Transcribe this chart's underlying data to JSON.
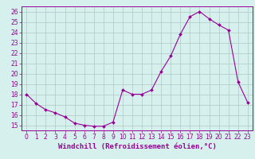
{
  "hours": [
    0,
    1,
    2,
    3,
    4,
    5,
    6,
    7,
    8,
    9,
    10,
    11,
    12,
    13,
    14,
    15,
    16,
    17,
    18,
    19,
    20,
    21,
    22,
    23
  ],
  "values": [
    18.0,
    17.1,
    16.5,
    16.2,
    15.8,
    15.2,
    15.0,
    14.9,
    14.9,
    15.3,
    18.4,
    18.0,
    18.0,
    18.4,
    20.2,
    21.7,
    23.8,
    25.5,
    26.0,
    25.3,
    24.7,
    24.2,
    19.2,
    17.2
  ],
  "line_color": "#990099",
  "marker": "D",
  "marker_size": 2,
  "bg_color": "#d6f0ee",
  "grid_color": "#b0c8c4",
  "xlabel": "Windchill (Refroidissement éolien,°C)",
  "xlim": [
    -0.5,
    23.5
  ],
  "ylim": [
    14.5,
    26.5
  ],
  "yticks": [
    15,
    16,
    17,
    18,
    19,
    20,
    21,
    22,
    23,
    24,
    25,
    26
  ],
  "xticks": [
    0,
    1,
    2,
    3,
    4,
    5,
    6,
    7,
    8,
    9,
    10,
    11,
    12,
    13,
    14,
    15,
    16,
    17,
    18,
    19,
    20,
    21,
    22,
    23
  ],
  "tick_fontsize": 5.5,
  "xlabel_fontsize": 6.5,
  "tick_color": "#990099",
  "axes_color": "#990099"
}
